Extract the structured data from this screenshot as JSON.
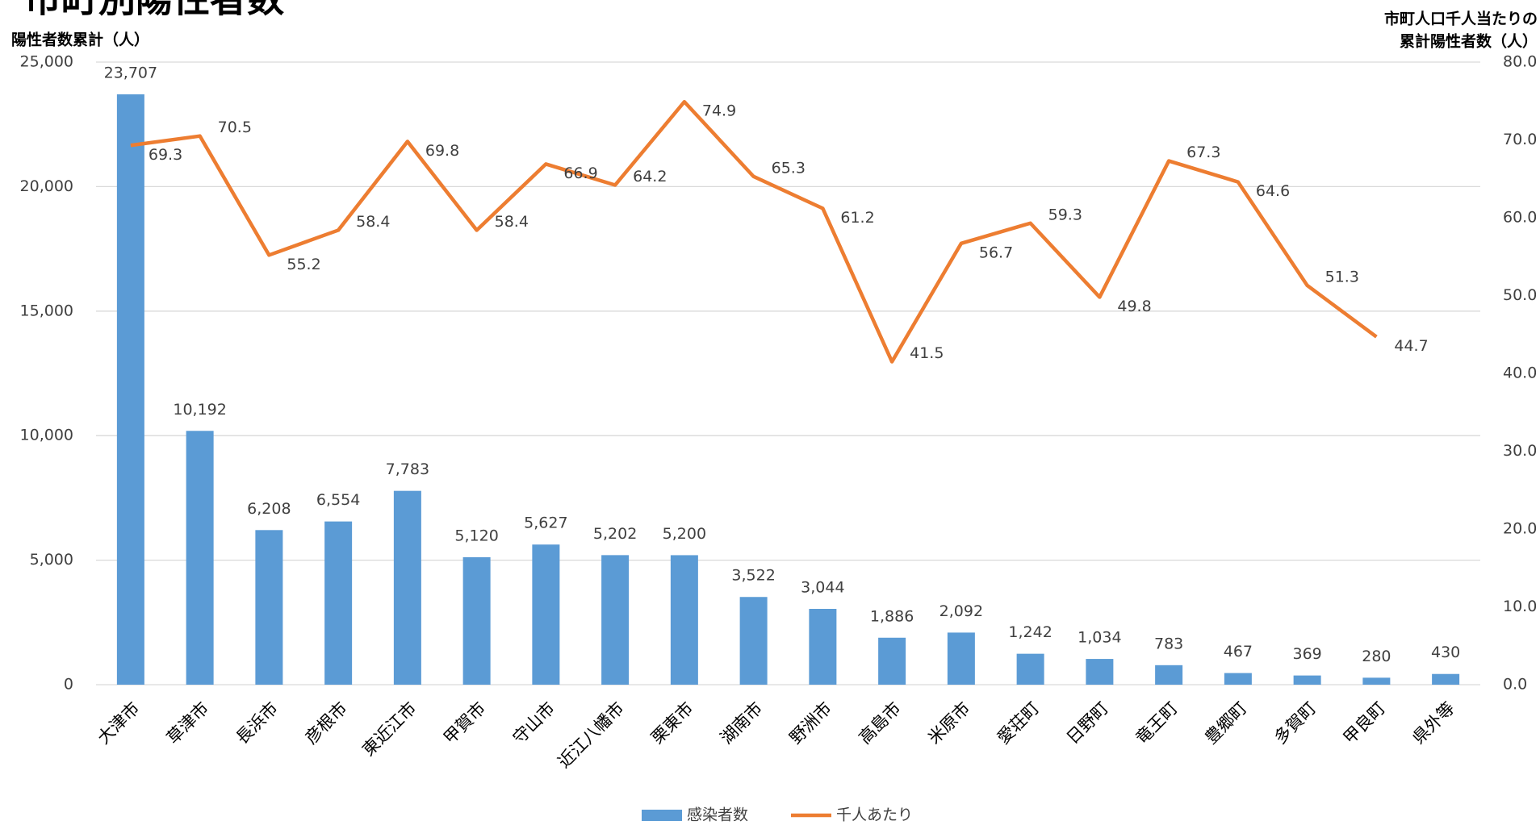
{
  "chart_data": {
    "type": "bar-line",
    "title": "市町別陽性者数",
    "y_label": "陽性者数累計（人）",
    "y2_label": [
      "市町人口千人当たりの",
      "累計陽性者数（人）"
    ],
    "categories": [
      "大津市",
      "草津市",
      "長浜市",
      "彦根市",
      "東近江市",
      "甲賀市",
      "守山市",
      "近江八幡市",
      "栗東市",
      "湖南市",
      "野洲市",
      "高島市",
      "米原市",
      "愛荘町",
      "日野町",
      "竜王町",
      "豊郷町",
      "多賀町",
      "甲良町",
      "県外等"
    ],
    "series": [
      {
        "name": "感染者数",
        "type": "bar",
        "color": "#5B9BD5",
        "values": [
          23707,
          10192,
          6208,
          6554,
          7783,
          5120,
          5627,
          5202,
          5200,
          3522,
          3044,
          1886,
          2092,
          1242,
          1034,
          783,
          467,
          369,
          280,
          430
        ],
        "value_labels": [
          "23,707",
          "10,192",
          "6,208",
          "6,554",
          "7,783",
          "5,120",
          "5,627",
          "5,202",
          "5,200",
          "3,522",
          "3,044",
          "1,886",
          "2,092",
          "1,242",
          "1,034",
          "783",
          "467",
          "369",
          "280",
          "430"
        ]
      },
      {
        "name": "千人あたり",
        "type": "line",
        "axis": "y2",
        "color": "#ED7D31",
        "values": [
          69.3,
          70.5,
          55.2,
          58.4,
          69.8,
          58.4,
          66.9,
          64.2,
          74.9,
          65.3,
          61.2,
          41.5,
          56.7,
          59.3,
          49.8,
          67.3,
          64.6,
          51.3,
          44.7,
          null
        ]
      }
    ],
    "ylim": [
      0,
      25000
    ],
    "yticks": [
      0,
      {
        "value": 5000,
        "label": "5,000"
      },
      {
        "value": 10000,
        "label": "10,000"
      },
      {
        "value": 15000,
        "label": "15,000"
      },
      {
        "value": 20000,
        "label": "20,000"
      },
      {
        "value": 25000,
        "label": "25,000"
      }
    ],
    "y2lim": [
      0,
      80
    ],
    "y2ticks": [
      {
        "value": 0,
        "label": "0.0"
      },
      {
        "value": 10,
        "label": "10.0"
      },
      {
        "value": 20,
        "label": "20.0"
      },
      {
        "value": 30,
        "label": "30.0"
      },
      {
        "value": 40,
        "label": "40.0"
      },
      {
        "value": 50,
        "label": "50.0"
      },
      {
        "value": 60,
        "label": "60.0"
      },
      {
        "value": 70,
        "label": "70.0"
      },
      {
        "value": 80,
        "label": "80.0"
      }
    ],
    "grid": true,
    "legend": "bottom"
  }
}
